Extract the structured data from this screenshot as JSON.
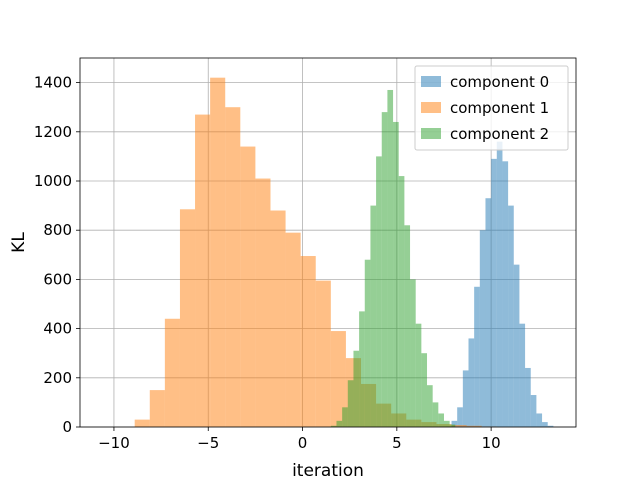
{
  "chart_data": {
    "type": "bar",
    "subtype": "histogram",
    "title": "",
    "xlabel": "iteration",
    "ylabel": "KL",
    "xlim": [
      -11.8,
      14.5
    ],
    "ylim": [
      0,
      1500
    ],
    "xticks": [
      -10,
      -5,
      0,
      5,
      10
    ],
    "xtick_labels": [
      "−10",
      "−5",
      "0",
      "5",
      "10"
    ],
    "yticks": [
      0,
      200,
      400,
      600,
      800,
      1000,
      1200,
      1400
    ],
    "ytick_labels": [
      "0",
      "200",
      "400",
      "600",
      "800",
      "1000",
      "1200",
      "1400"
    ],
    "grid": true,
    "legend_position": "top-right",
    "series": [
      {
        "name": "component 0",
        "color": "#1f77b4",
        "opacity": 0.5,
        "bin_edges": [
          7.6,
          7.9,
          8.2,
          8.5,
          8.8,
          9.1,
          9.4,
          9.7,
          10.0,
          10.3,
          10.6,
          10.9,
          11.2,
          11.5,
          11.8,
          12.1,
          12.4,
          12.7,
          13.0,
          13.3
        ],
        "counts": [
          2,
          25,
          80,
          230,
          360,
          570,
          800,
          930,
          1090,
          1160,
          1080,
          900,
          660,
          420,
          240,
          130,
          55,
          20,
          5
        ]
      },
      {
        "name": "component 1",
        "color": "#ff7f0e",
        "opacity": 0.5,
        "bin_edges": [
          -8.9,
          -8.1,
          -7.3,
          -6.5,
          -5.7,
          -4.9,
          -4.1,
          -3.3,
          -2.5,
          -1.7,
          -0.9,
          -0.1,
          0.7,
          1.5,
          2.3,
          3.1,
          3.9,
          4.7,
          5.5,
          6.3,
          7.1,
          7.9,
          8.7,
          9.5,
          10.3
        ],
        "counts": [
          30,
          150,
          440,
          885,
          1270,
          1420,
          1300,
          1140,
          1010,
          880,
          790,
          695,
          595,
          390,
          280,
          175,
          95,
          55,
          30,
          20,
          12,
          8,
          5,
          2
        ]
      },
      {
        "name": "component 2",
        "color": "#2ca02c",
        "opacity": 0.5,
        "bin_edges": [
          1.5,
          1.8,
          2.1,
          2.4,
          2.7,
          3.0,
          3.3,
          3.6,
          3.9,
          4.2,
          4.5,
          4.8,
          5.1,
          5.4,
          5.7,
          6.0,
          6.3,
          6.6,
          6.9,
          7.2,
          7.5,
          7.8,
          8.1
        ],
        "counts": [
          5,
          25,
          80,
          190,
          310,
          470,
          680,
          900,
          1100,
          1280,
          1370,
          1240,
          1020,
          820,
          600,
          420,
          300,
          170,
          100,
          55,
          25,
          10
        ]
      }
    ]
  }
}
